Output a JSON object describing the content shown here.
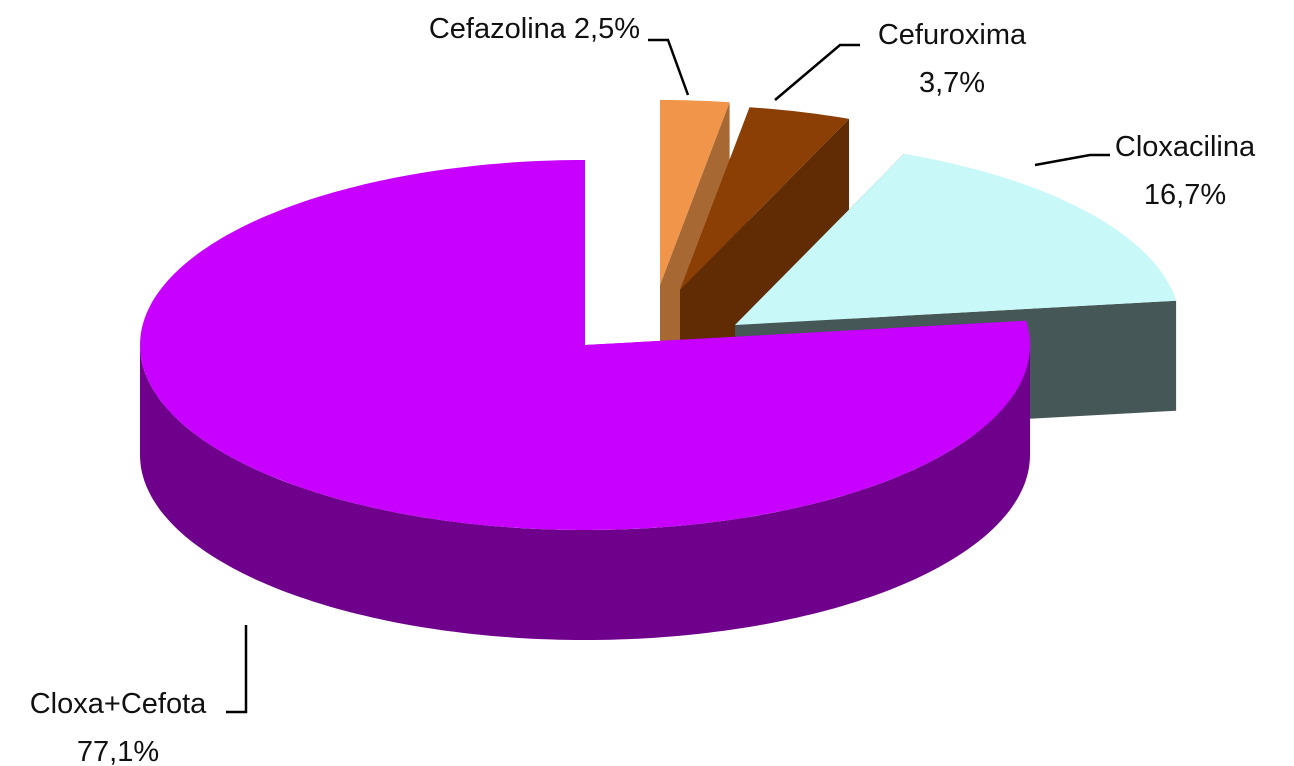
{
  "chart_data": {
    "type": "pie",
    "categories": [
      "Cefazolina",
      "Cefuroxima",
      "Cloxacilina",
      "Cloxa+Cefota"
    ],
    "values": [
      2.5,
      3.7,
      16.7,
      77.1
    ],
    "value_labels": [
      "2,5%",
      "3,7%",
      "16,7%",
      "77,1%"
    ],
    "colors": [
      "#f0954a",
      "#8b3f05",
      "#c8f8f8",
      "#c800ff"
    ]
  }
}
